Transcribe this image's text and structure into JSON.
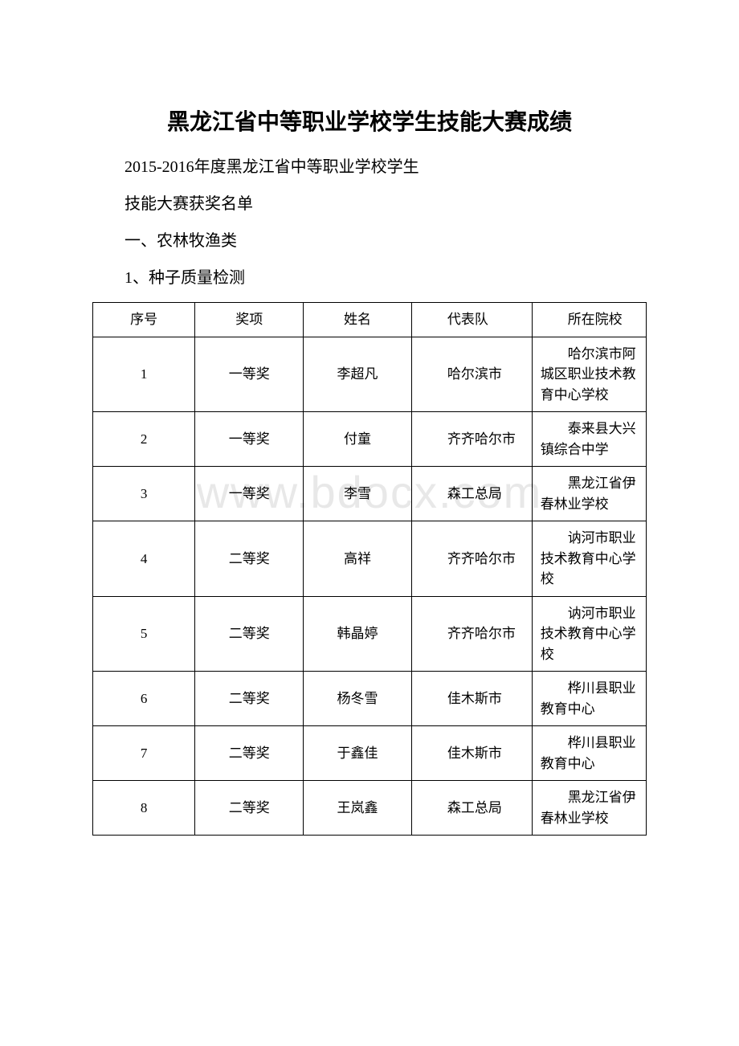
{
  "document": {
    "title": "黑龙江省中等职业学校学生技能大赛成绩",
    "subtitle_line1": "2015-2016年度黑龙江省中等职业学校学生",
    "subtitle_line2": "技能大赛获奖名单",
    "category": "一、农林牧渔类",
    "subcategory": "1、种子质量检测",
    "watermark": "www.bdocx.com"
  },
  "table": {
    "headers": {
      "seq": "序号",
      "award": "奖项",
      "name": "姓名",
      "team": "代表队",
      "school": "所在院校"
    },
    "rows": [
      {
        "seq": "1",
        "award": "一等奖",
        "name": "李超凡",
        "team": "哈尔滨市",
        "school": "哈尔滨市阿城区职业技术教育中心学校"
      },
      {
        "seq": "2",
        "award": "一等奖",
        "name": "付童",
        "team": "齐齐哈尔市",
        "school": "泰来县大兴镇综合中学"
      },
      {
        "seq": "3",
        "award": "一等奖",
        "name": "李雪",
        "team": "森工总局",
        "school": "黑龙江省伊春林业学校"
      },
      {
        "seq": "4",
        "award": "二等奖",
        "name": "高祥",
        "team": "齐齐哈尔市",
        "school": "讷河市职业技术教育中心学校"
      },
      {
        "seq": "5",
        "award": "二等奖",
        "name": "韩晶婷",
        "team": "齐齐哈尔市",
        "school": "讷河市职业技术教育中心学校"
      },
      {
        "seq": "6",
        "award": "二等奖",
        "name": "杨冬雪",
        "team": "佳木斯市",
        "school": "桦川县职业教育中心"
      },
      {
        "seq": "7",
        "award": "二等奖",
        "name": "于鑫佳",
        "team": "佳木斯市",
        "school": "桦川县职业教育中心"
      },
      {
        "seq": "8",
        "award": "二等奖",
        "name": "王岚鑫",
        "team": "森工总局",
        "school": "黑龙江省伊春林业学校"
      }
    ]
  },
  "styling": {
    "background_color": "#ffffff",
    "text_color": "#000000",
    "border_color": "#000000",
    "watermark_color": "#e8e8e8",
    "title_fontsize": 28,
    "body_fontsize": 20,
    "table_fontsize": 17
  }
}
